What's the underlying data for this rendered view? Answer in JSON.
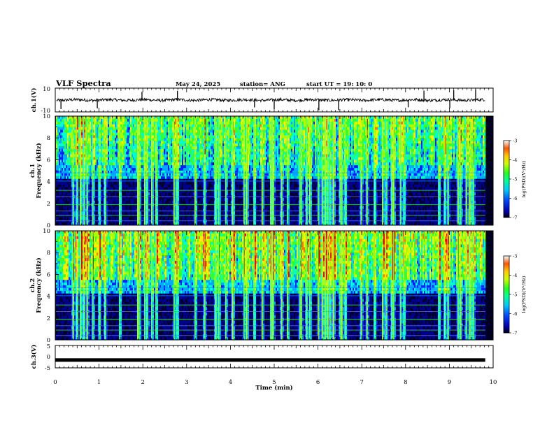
{
  "chart_data": {
    "type": "heatmap",
    "title": "VLF Spectra",
    "date": "May 24, 2025",
    "station": "station= ANG",
    "start": "start  UT =   19: 10: 0",
    "xlabel": "Time  (min)",
    "xlim": [
      0,
      10
    ],
    "xticks": [
      "0",
      "1",
      "2",
      "3",
      "4",
      "5",
      "6",
      "7",
      "8",
      "9",
      "10"
    ],
    "panels": [
      {
        "type": "line",
        "ylabel": "ch.1(V)",
        "ylim": [
          -10,
          10
        ],
        "yticks": [
          "10",
          "-10"
        ],
        "baseline": 0,
        "spikes_min": [
          0.13,
          0.96,
          1.98,
          2.79,
          4.55,
          5.0,
          6.02,
          6.47,
          8.06,
          8.42,
          9.01,
          9.1,
          9.6
        ]
      },
      {
        "type": "heatmap",
        "ylabel_line1": "ch.1",
        "ylabel_line2": "Frequency  (kHz)",
        "ylim": [
          0,
          10
        ],
        "yticks": [
          "0",
          "2",
          "4",
          "6",
          "8",
          "10"
        ],
        "colorbar": {
          "ticks": [
            "-3",
            "-4",
            "-5",
            "-6",
            "-7"
          ],
          "range": [
            -7,
            -3
          ],
          "label": "log(PSD)(V²/Hz)"
        }
      },
      {
        "type": "heatmap",
        "ylabel_line1": "ch.2",
        "ylabel_line2": "Frequency  (kHz)",
        "ylim": [
          0,
          10
        ],
        "yticks": [
          "0",
          "2",
          "4",
          "6",
          "8",
          "10"
        ],
        "colorbar": {
          "ticks": [
            "-3",
            "-4",
            "-5",
            "-6",
            "-7"
          ],
          "range": [
            -7,
            -3
          ],
          "label": "log(PSD)(V²/Hz)"
        }
      },
      {
        "type": "line",
        "ylabel": "ch.3(V)",
        "ylim": [
          -5,
          5
        ],
        "yticks": [
          "5",
          "0",
          "-5"
        ],
        "value": -1.5
      }
    ],
    "colormap": [
      "#000033",
      "#000088",
      "#0022ff",
      "#00aaff",
      "#00ffcc",
      "#33ff33",
      "#aaff00",
      "#ffee00",
      "#ff7700",
      "#ff0000"
    ]
  }
}
